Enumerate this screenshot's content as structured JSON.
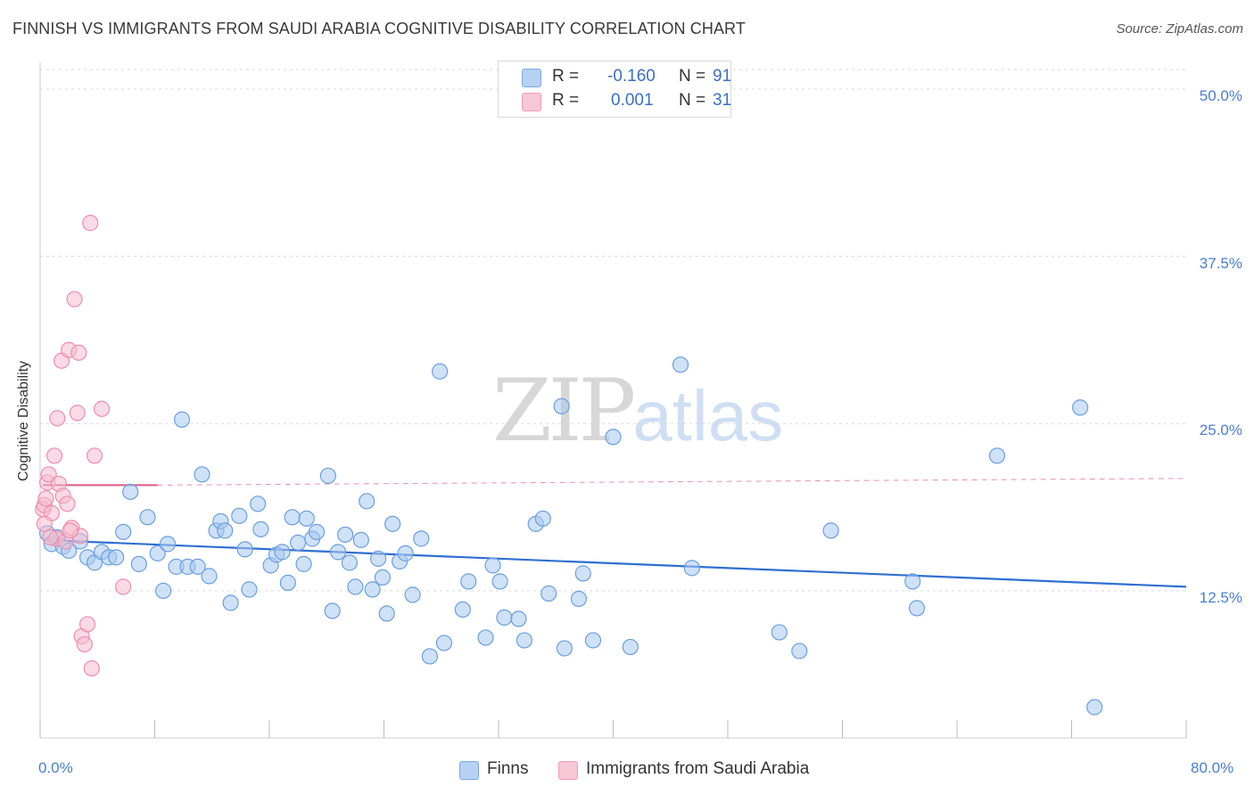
{
  "title": "FINNISH VS IMMIGRANTS FROM SAUDI ARABIA COGNITIVE DISABILITY CORRELATION CHART",
  "source": "Source: ZipAtlas.com",
  "watermark": {
    "zip": "ZIP",
    "atlas": "atlas"
  },
  "colors": {
    "finns_fill": "#a8c8f0",
    "finns_stroke": "#6a9fe0",
    "finns_line": "#2f6fd0",
    "saudi_fill": "#f6bccd",
    "saudi_stroke": "#ec8fac",
    "saudi_line": "#e0608a",
    "grid": "#d8d8d8",
    "axis_text": "#4a7fcf"
  },
  "legend_top": [
    {
      "r_label": "R =",
      "r_value": "-0.160",
      "n_label": "N =",
      "n_value": "91"
    },
    {
      "r_label": "R =",
      "r_value": "0.001",
      "n_label": "N =",
      "n_value": "31"
    }
  ],
  "legend_bottom": [
    "Finns",
    "Immigrants from Saudi Arabia"
  ],
  "chart_data": {
    "type": "scatter",
    "title": "FINNISH VS IMMIGRANTS FROM SAUDI ARABIA COGNITIVE DISABILITY CORRELATION CHART",
    "xlabel": "",
    "ylabel": "Cognitive Disability",
    "xlim": [
      0,
      80
    ],
    "ylim": [
      1.5,
      52
    ],
    "x_tick_labels": [
      "0.0%",
      "80.0%"
    ],
    "y_ticks": [
      12.5,
      25.0,
      37.5,
      50.0
    ],
    "y_tick_labels": [
      "12.5%",
      "25.0%",
      "37.5%",
      "50.0%"
    ],
    "grid": "horizontal dashed",
    "legend": "bottom-center",
    "series": [
      {
        "name": "Finns",
        "R": -0.16,
        "N": 91,
        "trend": {
          "x": [
            0.2,
            80
          ],
          "y": [
            16.3,
            12.8
          ]
        },
        "points": [
          [
            0.5,
            16.8
          ],
          [
            0.8,
            16.0
          ],
          [
            1.2,
            16.5
          ],
          [
            1.6,
            15.8
          ],
          [
            2.0,
            15.5
          ],
          [
            2.8,
            16.2
          ],
          [
            3.3,
            15.0
          ],
          [
            3.8,
            14.6
          ],
          [
            4.3,
            15.4
          ],
          [
            4.8,
            15.0
          ],
          [
            5.3,
            15.0
          ],
          [
            5.8,
            16.9
          ],
          [
            6.3,
            19.9
          ],
          [
            6.9,
            14.5
          ],
          [
            7.5,
            18.0
          ],
          [
            8.2,
            15.3
          ],
          [
            8.6,
            12.5
          ],
          [
            8.9,
            16.0
          ],
          [
            9.5,
            14.3
          ],
          [
            9.9,
            25.3
          ],
          [
            10.3,
            14.3
          ],
          [
            11.0,
            14.3
          ],
          [
            11.3,
            21.2
          ],
          [
            11.8,
            13.6
          ],
          [
            12.3,
            17.0
          ],
          [
            12.6,
            17.7
          ],
          [
            12.9,
            17.0
          ],
          [
            13.3,
            11.6
          ],
          [
            13.9,
            18.1
          ],
          [
            14.3,
            15.6
          ],
          [
            14.6,
            12.6
          ],
          [
            15.2,
            19.0
          ],
          [
            15.4,
            17.1
          ],
          [
            16.1,
            14.4
          ],
          [
            16.5,
            15.2
          ],
          [
            16.9,
            15.4
          ],
          [
            17.3,
            13.1
          ],
          [
            17.6,
            18.0
          ],
          [
            18.0,
            16.1
          ],
          [
            18.4,
            14.5
          ],
          [
            18.6,
            17.9
          ],
          [
            19.0,
            16.4
          ],
          [
            19.3,
            16.9
          ],
          [
            20.1,
            21.1
          ],
          [
            20.4,
            11.0
          ],
          [
            20.8,
            15.4
          ],
          [
            21.3,
            16.7
          ],
          [
            21.6,
            14.6
          ],
          [
            22.0,
            12.8
          ],
          [
            22.4,
            16.3
          ],
          [
            22.8,
            19.2
          ],
          [
            23.2,
            12.6
          ],
          [
            23.6,
            14.9
          ],
          [
            23.9,
            13.5
          ],
          [
            24.2,
            10.8
          ],
          [
            24.6,
            17.5
          ],
          [
            25.1,
            14.7
          ],
          [
            25.5,
            15.3
          ],
          [
            26.0,
            12.2
          ],
          [
            26.6,
            16.4
          ],
          [
            27.2,
            7.6
          ],
          [
            27.9,
            28.9
          ],
          [
            28.2,
            8.6
          ],
          [
            29.5,
            11.1
          ],
          [
            29.9,
            13.2
          ],
          [
            31.1,
            9.0
          ],
          [
            31.6,
            14.4
          ],
          [
            32.1,
            13.2
          ],
          [
            32.4,
            10.5
          ],
          [
            33.4,
            10.4
          ],
          [
            33.8,
            8.8
          ],
          [
            34.6,
            17.5
          ],
          [
            35.1,
            17.9
          ],
          [
            35.5,
            12.3
          ],
          [
            36.4,
            26.3
          ],
          [
            36.6,
            8.2
          ],
          [
            37.6,
            11.9
          ],
          [
            37.9,
            13.8
          ],
          [
            38.6,
            8.8
          ],
          [
            40.0,
            24.0
          ],
          [
            41.2,
            8.3
          ],
          [
            44.7,
            29.4
          ],
          [
            45.5,
            14.2
          ],
          [
            51.6,
            9.4
          ],
          [
            53.0,
            8.0
          ],
          [
            55.2,
            17.0
          ],
          [
            60.9,
            13.2
          ],
          [
            61.2,
            11.2
          ],
          [
            66.8,
            22.6
          ],
          [
            72.6,
            26.2
          ],
          [
            73.6,
            3.8
          ]
        ]
      },
      {
        "name": "Immigrants from Saudi Arabia",
        "R": 0.001,
        "N": 31,
        "trend": {
          "x": [
            0.2,
            8.2
          ],
          "y": [
            20.4,
            20.4
          ],
          "dashed_to": [
            80,
            20.9
          ]
        },
        "points": [
          [
            0.2,
            18.6
          ],
          [
            0.3,
            18.9
          ],
          [
            0.4,
            19.4
          ],
          [
            0.5,
            20.6
          ],
          [
            0.6,
            21.2
          ],
          [
            0.8,
            18.3
          ],
          [
            1.0,
            22.6
          ],
          [
            1.1,
            16.4
          ],
          [
            1.3,
            20.5
          ],
          [
            1.5,
            29.7
          ],
          [
            1.6,
            19.6
          ],
          [
            1.8,
            16.2
          ],
          [
            1.9,
            19.0
          ],
          [
            2.0,
            30.5
          ],
          [
            2.2,
            17.2
          ],
          [
            2.4,
            34.3
          ],
          [
            2.6,
            25.8
          ],
          [
            2.7,
            30.3
          ],
          [
            2.8,
            16.6
          ],
          [
            2.9,
            9.1
          ],
          [
            3.1,
            8.5
          ],
          [
            3.3,
            10.0
          ],
          [
            3.5,
            40.0
          ],
          [
            3.6,
            6.7
          ],
          [
            3.8,
            22.6
          ],
          [
            4.3,
            26.1
          ],
          [
            5.8,
            12.8
          ],
          [
            0.3,
            17.5
          ],
          [
            0.7,
            16.5
          ],
          [
            1.2,
            25.4
          ],
          [
            2.1,
            17.0
          ]
        ]
      }
    ]
  }
}
